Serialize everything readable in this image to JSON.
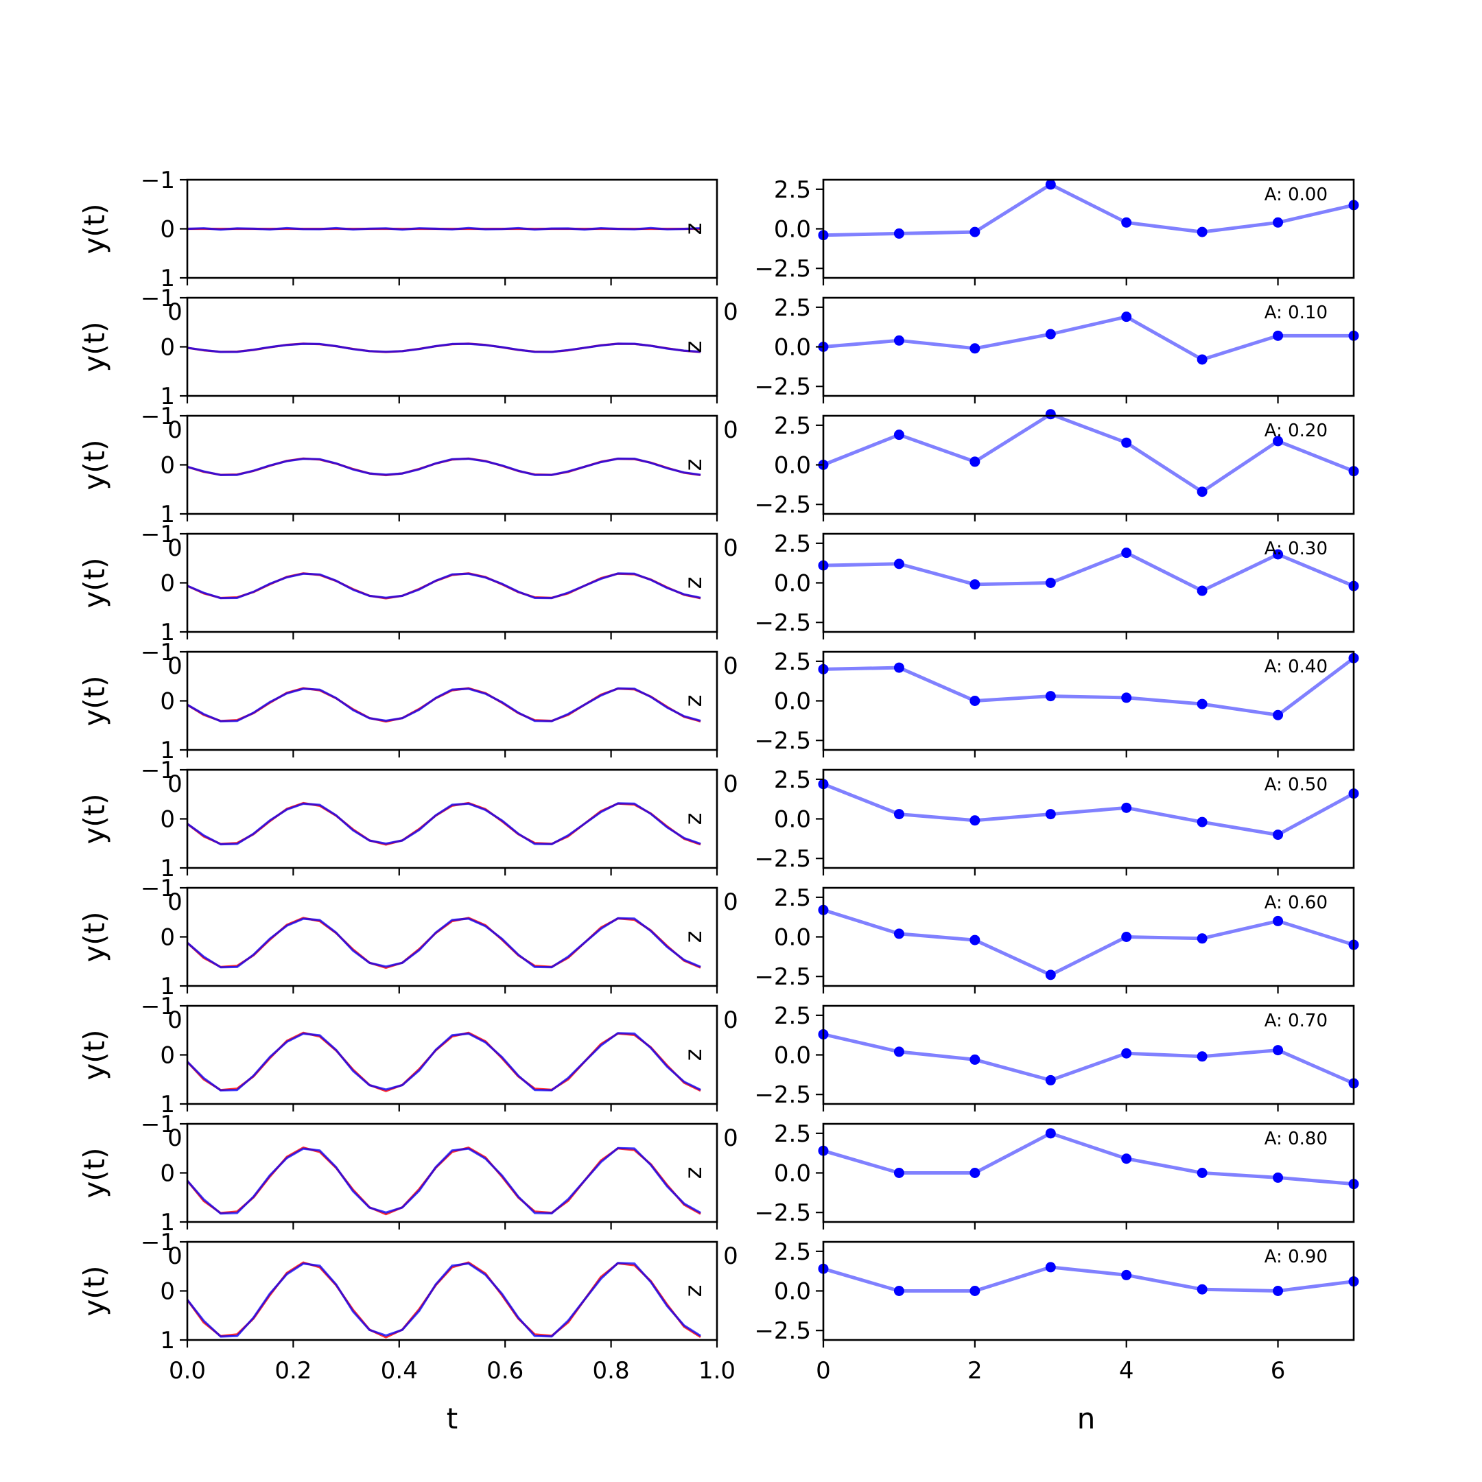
{
  "chart_data": [
    {
      "type": "line",
      "panel_side": "left",
      "rows": 10,
      "x_ticks": [
        "0.0",
        "0.2",
        "0.4",
        "0.6",
        "0.8",
        "1.0"
      ],
      "y_ticks": [
        "−1",
        "0",
        "1"
      ],
      "xlim": [
        0,
        1
      ],
      "ylim": [
        -1,
        1
      ],
      "xlabel": "t",
      "ylabel": "y(t)",
      "marker_text": "z",
      "stray_tick_text": "0",
      "series_colors": {
        "reference": "#ff3030",
        "estimate": "#0000ff"
      },
      "t": [
        0.0,
        0.031,
        0.063,
        0.094,
        0.125,
        0.156,
        0.188,
        0.219,
        0.25,
        0.281,
        0.313,
        0.344,
        0.375,
        0.406,
        0.438,
        0.469,
        0.5,
        0.531,
        0.563,
        0.594,
        0.625,
        0.656,
        0.688,
        0.719,
        0.75,
        0.781,
        0.813,
        0.844,
        0.875,
        0.906,
        0.938,
        0.969
      ],
      "amplitudes": [
        0.0,
        0.1,
        0.2,
        0.3,
        0.4,
        0.5,
        0.6,
        0.7,
        0.8,
        0.9
      ]
    },
    {
      "type": "line",
      "panel_side": "right",
      "rows": 10,
      "x_ticks": [
        "0",
        "2",
        "4",
        "6"
      ],
      "y_ticks": [
        "2.5",
        "0.0",
        "−2.5"
      ],
      "xlim": [
        0,
        7
      ],
      "ylim": [
        -3.1,
        3.1
      ],
      "xlabel": "n",
      "ylabel": "",
      "line_color": "#8080ff",
      "marker_color": "#0000ff",
      "annotations": [
        "A: 0.00",
        "A: 0.10",
        "A: 0.20",
        "A: 0.30",
        "A: 0.40",
        "A: 0.50",
        "A: 0.60",
        "A: 0.70",
        "A: 0.80",
        "A: 0.90"
      ],
      "n": [
        0,
        1,
        2,
        3,
        4,
        5,
        6,
        7
      ],
      "series": [
        {
          "values": [
            -0.4,
            -0.3,
            -0.2,
            2.8,
            0.4,
            -0.2,
            0.4,
            1.5
          ]
        },
        {
          "values": [
            0.0,
            0.4,
            -0.1,
            0.8,
            1.9,
            -0.8,
            0.7,
            0.7
          ]
        },
        {
          "values": [
            0.0,
            1.9,
            0.2,
            3.2,
            1.4,
            -1.7,
            1.5,
            -0.4
          ]
        },
        {
          "values": [
            1.1,
            1.2,
            -0.1,
            0.0,
            1.9,
            -0.5,
            1.8,
            -0.2
          ]
        },
        {
          "values": [
            2.0,
            2.1,
            0.0,
            0.3,
            0.2,
            -0.2,
            -0.9,
            2.7
          ]
        },
        {
          "values": [
            2.2,
            0.3,
            -0.1,
            0.3,
            0.7,
            -0.2,
            -1.0,
            1.6
          ]
        },
        {
          "values": [
            1.7,
            0.2,
            -0.2,
            -2.4,
            0.0,
            -0.1,
            1.0,
            -0.5
          ]
        },
        {
          "values": [
            1.3,
            0.2,
            -0.3,
            -1.6,
            0.1,
            -0.1,
            0.3,
            -1.8
          ]
        },
        {
          "values": [
            1.4,
            0.0,
            0.0,
            2.5,
            0.9,
            0.0,
            -0.3,
            -0.7
          ]
        },
        {
          "values": [
            1.4,
            0.0,
            0.0,
            1.5,
            1.0,
            0.1,
            0.0,
            0.6
          ]
        }
      ]
    }
  ]
}
